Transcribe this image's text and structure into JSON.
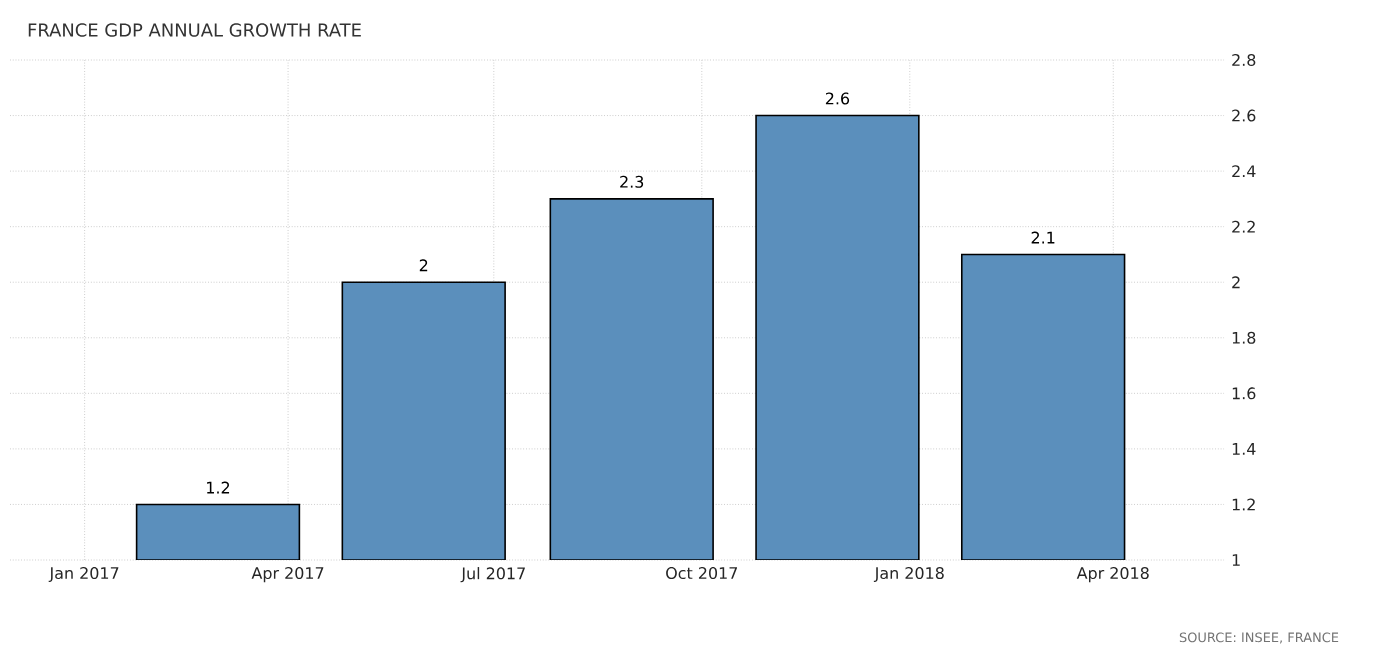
{
  "chart_data": {
    "type": "bar",
    "title": "FRANCE GDP ANNUAL GROWTH RATE",
    "x": [
      "2017-03-01",
      "2017-05-31",
      "2017-08-31",
      "2017-11-30",
      "2018-03-01"
    ],
    "values": [
      1.2,
      2,
      2.3,
      2.6,
      2.1
    ],
    "color": "#5b8fbc",
    "data_labels": true,
    "xlim": [
      "2016-11-29",
      "2018-05-20"
    ],
    "xticks": [
      {
        "value": "2017-01-01",
        "label": "Jan 2017"
      },
      {
        "value": "2017-04-01",
        "label": "Apr 2017"
      },
      {
        "value": "2017-07-01",
        "label": "Jul 2017"
      },
      {
        "value": "2017-10-01",
        "label": "Oct 2017"
      },
      {
        "value": "2018-01-01",
        "label": "Jan 2018"
      },
      {
        "value": "2018-04-01",
        "label": "Apr 2018"
      }
    ],
    "ylim": [
      1,
      2.8
    ],
    "yticks": [
      1,
      1.2,
      1.4,
      1.6,
      1.8,
      2,
      2.2,
      2.4,
      2.6,
      2.8
    ],
    "grid": true,
    "annotations": [
      "SOURCE: INSEE, FRANCE"
    ]
  }
}
